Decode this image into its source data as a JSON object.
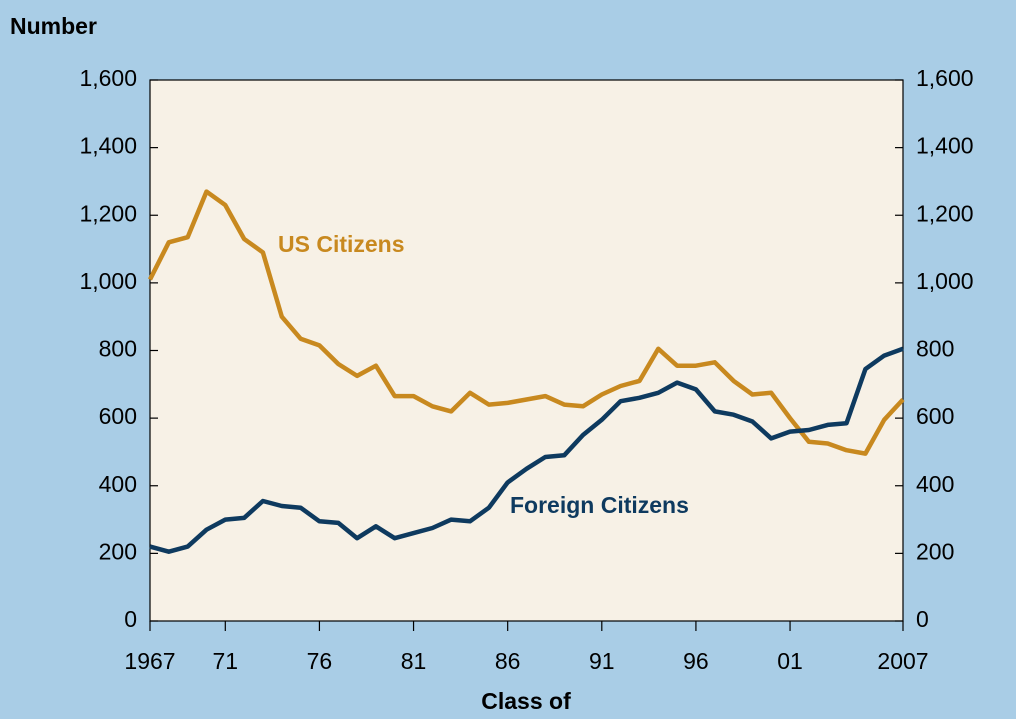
{
  "chart_data": {
    "type": "line",
    "y_label": "Number",
    "x_label": "Class of",
    "x": [
      1967,
      1968,
      1969,
      1970,
      1971,
      1972,
      1973,
      1974,
      1975,
      1976,
      1977,
      1978,
      1979,
      1980,
      1981,
      1982,
      1983,
      1984,
      1985,
      1986,
      1987,
      1988,
      1989,
      1990,
      1991,
      1992,
      1993,
      1994,
      1995,
      1996,
      1997,
      1998,
      1999,
      2000,
      2001,
      2002,
      2003,
      2004,
      2005,
      2006,
      2007
    ],
    "series": [
      {
        "name": "US Citizens",
        "color": "#c8891f",
        "values": [
          1010,
          1120,
          1135,
          1270,
          1230,
          1130,
          1090,
          900,
          835,
          815,
          760,
          725,
          755,
          665,
          665,
          635,
          620,
          675,
          640,
          645,
          655,
          665,
          640,
          635,
          670,
          695,
          710,
          805,
          755,
          755,
          765,
          710,
          670,
          675,
          600,
          530,
          525,
          505,
          495,
          595,
          655
        ]
      },
      {
        "name": "Foreign Citizens",
        "color": "#0e3a5f",
        "values": [
          220,
          205,
          220,
          270,
          300,
          305,
          355,
          340,
          335,
          295,
          290,
          245,
          280,
          245,
          260,
          275,
          300,
          295,
          335,
          410,
          450,
          485,
          490,
          550,
          595,
          650,
          660,
          675,
          705,
          685,
          620,
          610,
          590,
          540,
          560,
          565,
          580,
          585,
          745,
          785,
          805
        ]
      }
    ],
    "xlim": [
      1967,
      2007
    ],
    "xticks": [
      1967,
      {
        "value": 1971,
        "label": "71"
      },
      {
        "value": 1976,
        "label": "76"
      },
      {
        "value": 1981,
        "label": "81"
      },
      {
        "value": 1986,
        "label": "86"
      },
      {
        "value": 1991,
        "label": "91"
      },
      {
        "value": 1996,
        "label": "96"
      },
      {
        "value": 2001,
        "label": "01"
      },
      2007
    ],
    "ylim": [
      0,
      1600
    ],
    "yticks": [
      0,
      200,
      400,
      600,
      800,
      {
        "value": 1000,
        "label": "1,000"
      },
      {
        "value": 1200,
        "label": "1,200"
      },
      {
        "value": 1400,
        "label": "1,400"
      },
      {
        "value": 1600,
        "label": "1,600"
      }
    ],
    "plot_background": "#f7f1e6"
  }
}
